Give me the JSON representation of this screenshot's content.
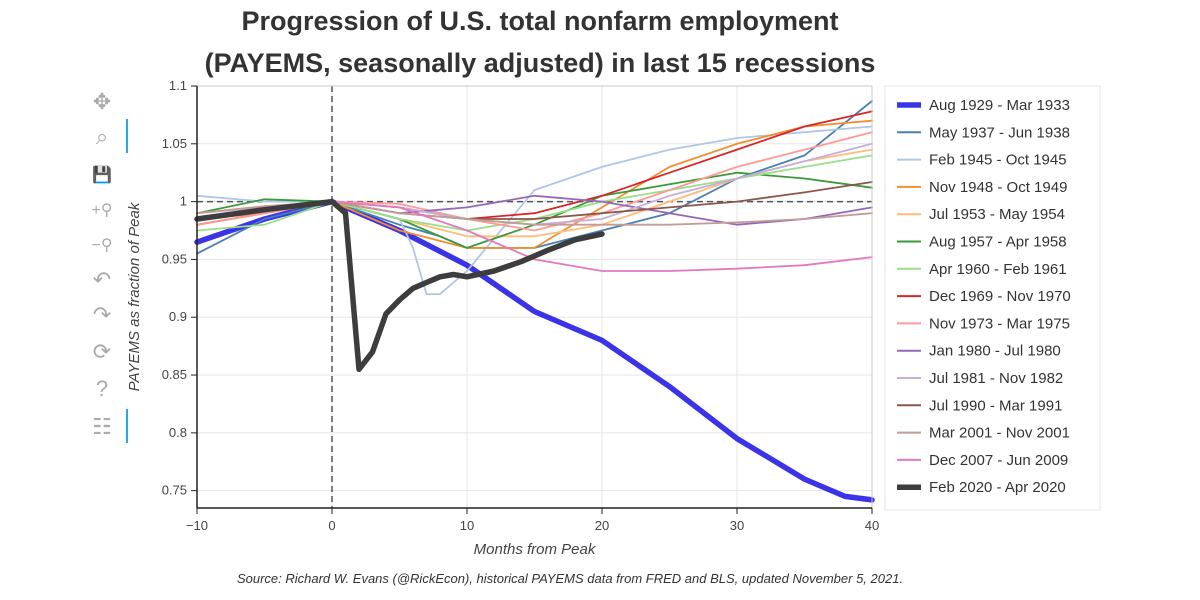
{
  "chart_data": {
    "type": "line",
    "title": "Progression of U.S. total nonfarm employment",
    "subtitle": "(PAYEMS, seasonally adjusted) in last 15 recessions",
    "xlabel": "Months from Peak",
    "ylabel": "PAYEMS as fraction of Peak",
    "xlim": [
      -10,
      40
    ],
    "ylim": [
      0.735,
      1.1
    ],
    "xticks": [
      -10,
      0,
      10,
      20,
      30,
      40
    ],
    "xtick_labels": [
      "−10",
      "0",
      "10",
      "20",
      "30",
      "40"
    ],
    "yticks": [
      0.75,
      0.8,
      0.85,
      0.9,
      0.95,
      1,
      1.05,
      1.1
    ],
    "ytick_labels": [
      "0.75",
      "0.8",
      "0.85",
      "0.9",
      "0.95",
      "1",
      "1.05",
      "1.1"
    ],
    "reference_lines": {
      "horizontal_y": 1,
      "vertical_x": 0,
      "style": "dashed"
    },
    "grid": true,
    "legend_position": "right",
    "series": [
      {
        "name": "Aug 1929 - Mar 1933",
        "color": "#3a33e8",
        "width": "thick",
        "x": [
          -10,
          -5,
          0,
          5,
          10,
          15,
          20,
          25,
          30,
          35,
          38,
          40
        ],
        "y": [
          0.965,
          0.985,
          1.0,
          0.975,
          0.945,
          0.905,
          0.88,
          0.84,
          0.795,
          0.76,
          0.745,
          0.742
        ]
      },
      {
        "name": "May 1937 - Jun 1938",
        "color": "#4a7fb5",
        "width": "normal",
        "x": [
          -10,
          -5,
          0,
          5,
          8,
          10,
          15,
          20,
          25,
          30,
          35,
          40
        ],
        "y": [
          0.955,
          0.985,
          1.0,
          0.98,
          0.97,
          0.96,
          0.96,
          0.975,
          0.99,
          1.02,
          1.04,
          1.087
        ]
      },
      {
        "name": "Feb 1945 - Oct 1945",
        "color": "#aec7e8",
        "width": "normal",
        "x": [
          -10,
          -5,
          0,
          5,
          6,
          7,
          8,
          10,
          15,
          20,
          25,
          30,
          35,
          40
        ],
        "y": [
          1.005,
          1.0,
          1.0,
          0.985,
          0.96,
          0.92,
          0.92,
          0.94,
          1.01,
          1.03,
          1.045,
          1.055,
          1.06,
          1.065
        ]
      },
      {
        "name": "Nov 1948 - Oct 1949",
        "color": "#f28e2b",
        "width": "normal",
        "x": [
          -10,
          -5,
          0,
          5,
          10,
          15,
          20,
          25,
          30,
          35,
          40
        ],
        "y": [
          0.985,
          0.99,
          1.0,
          0.975,
          0.96,
          0.96,
          0.995,
          1.03,
          1.05,
          1.065,
          1.07
        ]
      },
      {
        "name": "Jul 1953 - May 1954",
        "color": "#ffbb78",
        "width": "normal",
        "x": [
          -10,
          -5,
          0,
          5,
          10,
          15,
          20,
          25,
          30,
          35,
          40
        ],
        "y": [
          0.98,
          0.99,
          1.0,
          0.985,
          0.97,
          0.97,
          0.98,
          1.0,
          1.02,
          1.035,
          1.045
        ]
      },
      {
        "name": "Aug 1957 - Apr 1958",
        "color": "#3a9a3a",
        "width": "normal",
        "x": [
          -10,
          -5,
          0,
          5,
          10,
          15,
          20,
          25,
          30,
          35,
          40
        ],
        "y": [
          0.99,
          1.002,
          1.0,
          0.985,
          0.96,
          0.98,
          1.005,
          1.015,
          1.025,
          1.02,
          1.012
        ]
      },
      {
        "name": "Apr 1960 - Feb 1961",
        "color": "#98df8a",
        "width": "normal",
        "x": [
          -10,
          -5,
          0,
          5,
          10,
          15,
          20,
          25,
          30,
          35,
          40
        ],
        "y": [
          0.975,
          0.98,
          1.0,
          0.985,
          0.975,
          0.985,
          1.0,
          1.01,
          1.02,
          1.03,
          1.04
        ]
      },
      {
        "name": "Dec 1969 - Nov 1970",
        "color": "#d62728",
        "width": "normal",
        "x": [
          -10,
          -5,
          0,
          5,
          10,
          15,
          20,
          25,
          30,
          35,
          40
        ],
        "y": [
          0.98,
          0.99,
          1.0,
          0.995,
          0.985,
          0.99,
          1.005,
          1.025,
          1.045,
          1.065,
          1.078
        ]
      },
      {
        "name": "Nov 1973 - Mar 1975",
        "color": "#ff9896",
        "width": "normal",
        "x": [
          -10,
          -5,
          0,
          5,
          10,
          15,
          20,
          25,
          30,
          35,
          40
        ],
        "y": [
          0.98,
          0.99,
          1.0,
          0.998,
          0.985,
          0.975,
          0.99,
          1.01,
          1.03,
          1.045,
          1.06
        ]
      },
      {
        "name": "Jan 1980 - Jul 1980",
        "color": "#9467bd",
        "width": "normal",
        "x": [
          -10,
          -5,
          0,
          5,
          10,
          15,
          20,
          25,
          30,
          35,
          40
        ],
        "y": [
          0.985,
          0.995,
          1.0,
          0.99,
          0.995,
          1.005,
          1.0,
          0.99,
          0.98,
          0.985,
          0.995
        ]
      },
      {
        "name": "Jul 1981 - Nov 1982",
        "color": "#c5b0d5",
        "width": "normal",
        "x": [
          -10,
          -5,
          0,
          5,
          10,
          15,
          20,
          25,
          30,
          35,
          40
        ],
        "y": [
          0.99,
          0.995,
          1.0,
          0.995,
          0.985,
          0.98,
          0.985,
          1.005,
          1.02,
          1.035,
          1.05
        ]
      },
      {
        "name": "Jul 1990 - Mar 1991",
        "color": "#8c564b",
        "width": "normal",
        "x": [
          -10,
          -5,
          0,
          5,
          10,
          15,
          20,
          25,
          30,
          35,
          40
        ],
        "y": [
          0.985,
          0.995,
          1.0,
          0.99,
          0.985,
          0.985,
          0.99,
          0.995,
          1.0,
          1.008,
          1.017
        ]
      },
      {
        "name": "Mar 2001 - Nov 2001",
        "color": "#c49c94",
        "width": "normal",
        "x": [
          -10,
          -5,
          0,
          5,
          10,
          15,
          20,
          25,
          30,
          35,
          40
        ],
        "y": [
          0.99,
          0.996,
          1.0,
          0.99,
          0.985,
          0.98,
          0.98,
          0.98,
          0.982,
          0.985,
          0.99
        ]
      },
      {
        "name": "Dec 2007 - Jun 2009",
        "color": "#e377c2",
        "width": "normal",
        "x": [
          -10,
          -5,
          0,
          5,
          10,
          15,
          20,
          25,
          30,
          35,
          40
        ],
        "y": [
          0.985,
          0.995,
          1.0,
          0.995,
          0.975,
          0.95,
          0.94,
          0.94,
          0.942,
          0.945,
          0.952
        ]
      },
      {
        "name": "Feb 2020 - Apr 2020",
        "color": "#3d3d3d",
        "width": "thick",
        "x": [
          -10,
          -5,
          0,
          1,
          2,
          3,
          4,
          5,
          6,
          7,
          8,
          9,
          10,
          12,
          14,
          16,
          18,
          20
        ],
        "y": [
          0.985,
          0.993,
          1.0,
          0.99,
          0.855,
          0.87,
          0.903,
          0.915,
          0.925,
          0.93,
          0.935,
          0.937,
          0.935,
          0.94,
          0.948,
          0.958,
          0.967,
          0.972
        ]
      }
    ],
    "source": "Source: Richard W. Evans (@RickEcon), historical PAYEMS data from FRED and BLS, updated November 5, 2021."
  },
  "toolbar": {
    "tools": [
      {
        "name": "pan-tool",
        "icon": "move-icon",
        "glyph": "✥",
        "active": false
      },
      {
        "name": "box-zoom-tool",
        "icon": "box-zoom-icon",
        "glyph": "⌕",
        "active": true
      },
      {
        "name": "save-tool",
        "icon": "save-icon",
        "glyph": "💾",
        "active": false
      },
      {
        "name": "zoom-in-tool",
        "icon": "zoom-in-icon",
        "glyph": "+⚲",
        "active": false
      },
      {
        "name": "zoom-out-tool",
        "icon": "zoom-out-icon",
        "glyph": "−⚲",
        "active": false
      },
      {
        "name": "undo-tool",
        "icon": "undo-icon",
        "glyph": "↶",
        "active": false
      },
      {
        "name": "redo-tool",
        "icon": "redo-icon",
        "glyph": "↷",
        "active": false
      },
      {
        "name": "reset-tool",
        "icon": "reset-icon",
        "glyph": "⟳",
        "active": false
      },
      {
        "name": "help-tool",
        "icon": "help-icon",
        "glyph": "?",
        "active": false
      },
      {
        "name": "hover-tool",
        "icon": "hover-icon",
        "glyph": "☷",
        "active": true
      }
    ]
  }
}
